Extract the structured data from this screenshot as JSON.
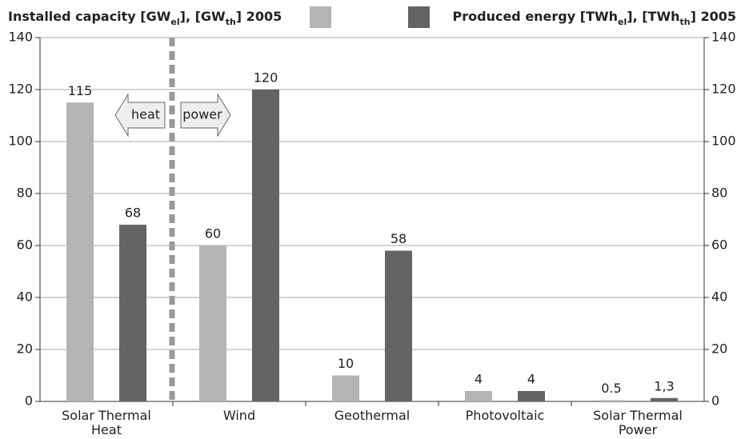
{
  "chart_data": {
    "type": "bar",
    "categories": [
      "Solar Thermal\nHeat",
      "Wind",
      "Geothermal",
      "Photovoltaic",
      "Solar Thermal\nPower"
    ],
    "series": [
      {
        "name": "Installed capacity [GWel], [GWth] 2005",
        "color": "#b4b4b4",
        "values": [
          115,
          60,
          10,
          4,
          0.5
        ]
      },
      {
        "name": "Produced energy [TWhel], [TWhth] 2005",
        "color": "#646464",
        "axis": "y2",
        "values": [
          68,
          120,
          58,
          4,
          1.3
        ],
        "value_labels": [
          "68",
          "120",
          "58",
          "4",
          "1,3"
        ]
      }
    ],
    "ylim": [
      0,
      140
    ],
    "yticks": [
      0,
      20,
      40,
      60,
      80,
      100,
      120,
      140
    ],
    "y2lim": [
      0,
      140
    ],
    "y2ticks": [
      0,
      20,
      40,
      60,
      80,
      100,
      120,
      140
    ],
    "grid": true,
    "annotations": [
      "heat",
      "power"
    ]
  }
}
